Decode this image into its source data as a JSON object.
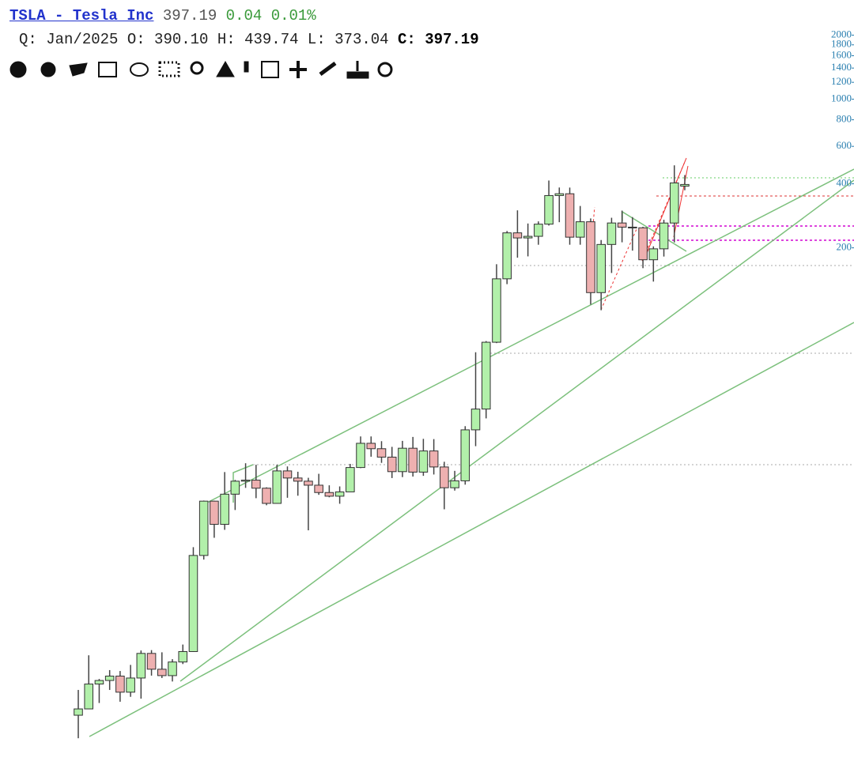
{
  "chart_data": {
    "type": "candlestick",
    "title": "TSLA - Tesla Inc",
    "last": "397.19",
    "change": "0.04",
    "change_pct": "0.01%",
    "period": "Q: Jan/2025",
    "ohlc_labels": [
      {
        "label": "O:",
        "value": "390.10"
      },
      {
        "label": "H:",
        "value": "439.74"
      },
      {
        "label": "L:",
        "value": "373.04"
      },
      {
        "label": "C:",
        "value": "397.19"
      }
    ],
    "log_scale": true,
    "ylim": [
      0.63,
      2263
    ],
    "yticks": [
      200,
      400,
      600,
      800,
      1000,
      1200,
      1400,
      1600,
      1800,
      2000
    ],
    "up_color": "#b2f0aa",
    "down_color": "#eeb0b0",
    "open": [
      1.27,
      1.36,
      1.78,
      1.85,
      1.94,
      1.63,
      1.9,
      2.48,
      2.09,
      1.95,
      2.26,
      2.53,
      7.16,
      12.89,
      10.03,
      13.9,
      16.0,
      16.18,
      14.83,
      12.58,
      17.88,
      16.56,
      16.0,
      15.32,
      14.15,
      13.6,
      14.25,
      18.55,
      24.11,
      22.74,
      20.76,
      17.74,
      22.86,
      17.65,
      22.19,
      18.66,
      14.9,
      16.06,
      27.89,
      34.93,
      71.99,
      143.0,
      235.22,
      222.64,
      226.57,
      258.49,
      352.26,
      359.2,
      224.47,
      265.25,
      123.18,
      207.46,
      261.77,
      250.22,
      248.48,
      175.79,
      197.88,
      261.63,
      390.1
    ],
    "high": [
      1.67,
      2.43,
      1.88,
      2.07,
      2.05,
      2.19,
      2.56,
      2.57,
      2.51,
      2.33,
      2.73,
      7.83,
      12.97,
      12.96,
      17.66,
      16.22,
      19.43,
      19.11,
      14.97,
      19.11,
      18.77,
      17.72,
      16.6,
      17.33,
      15.3,
      15.12,
      19.29,
      25.97,
      25.97,
      24.67,
      23.2,
      24.75,
      25.83,
      25.3,
      25.23,
      19.74,
      17.89,
      29.02,
      64.6,
      72.89,
      167.5,
      240.0,
      300.13,
      260.26,
      266.33,
      414.5,
      384.29,
      384.0,
      314.67,
      275.0,
      217.65,
      276.99,
      299.29,
      278.98,
      251.25,
      203.2,
      271.0,
      488.54,
      439.74
    ],
    "low": [
      0.99,
      1.37,
      1.45,
      1.67,
      1.47,
      1.55,
      1.52,
      1.95,
      1.9,
      1.83,
      2.21,
      2.52,
      6.85,
      8.67,
      9.45,
      11.71,
      14.88,
      13.31,
      12.33,
      12.55,
      13.37,
      13.67,
      9.4,
      13.8,
      13.44,
      12.53,
      14.25,
      18.43,
      20.85,
      19.51,
      16.55,
      16.72,
      16.82,
      16.95,
      17.2,
      11.8,
      14.45,
      15.41,
      23.37,
      31.57,
      71.32,
      135.0,
      179.83,
      182.33,
      206.82,
      254.53,
      264.0,
      206.86,
      206.86,
      108.24,
      101.81,
      152.37,
      212.36,
      194.07,
      160.51,
      138.8,
      182.0,
      212.11,
      373.04
    ],
    "close": [
      1.36,
      1.78,
      1.85,
      1.94,
      1.63,
      1.9,
      2.48,
      2.09,
      1.95,
      2.26,
      2.53,
      7.16,
      12.89,
      10.03,
      13.9,
      16.0,
      16.18,
      14.83,
      12.58,
      17.88,
      16.56,
      16.0,
      15.32,
      14.15,
      13.6,
      14.25,
      18.55,
      24.11,
      22.74,
      20.76,
      17.74,
      22.86,
      17.65,
      22.19,
      18.66,
      14.9,
      16.06,
      27.89,
      34.93,
      71.99,
      143.0,
      235.22,
      222.64,
      226.57,
      258.49,
      352.26,
      359.2,
      224.47,
      265.25,
      123.18,
      207.46,
      261.77,
      250.22,
      248.48,
      175.79,
      197.88,
      261.63,
      403.84,
      397.19
    ]
  }
}
